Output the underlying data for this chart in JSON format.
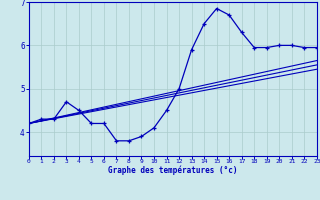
{
  "xlabel": "Graphe des températures (°c)",
  "x": [
    0,
    1,
    2,
    3,
    4,
    5,
    6,
    7,
    8,
    9,
    10,
    11,
    12,
    13,
    14,
    15,
    16,
    17,
    18,
    19,
    20,
    21,
    22,
    23
  ],
  "curve1": [
    4.2,
    4.3,
    4.3,
    4.7,
    4.5,
    4.2,
    4.2,
    3.8,
    3.8,
    3.9,
    4.1,
    4.5,
    5.0,
    5.9,
    6.5,
    6.85,
    6.7,
    6.3,
    5.95,
    5.95,
    6.0,
    6.0,
    5.95,
    5.95
  ],
  "line1_y": [
    4.2,
    5.55
  ],
  "line2_y": [
    4.2,
    5.65
  ],
  "line3_y": [
    4.2,
    5.45
  ],
  "ylim": [
    3.45,
    7.0
  ],
  "xlim": [
    0,
    23
  ],
  "yticks": [
    4,
    5,
    6,
    7
  ],
  "xticks": [
    0,
    1,
    2,
    3,
    4,
    5,
    6,
    7,
    8,
    9,
    10,
    11,
    12,
    13,
    14,
    15,
    16,
    17,
    18,
    19,
    20,
    21,
    22,
    23
  ],
  "line_color": "#0000bb",
  "bg_color": "#cce8ec",
  "grid_color": "#aacccc"
}
